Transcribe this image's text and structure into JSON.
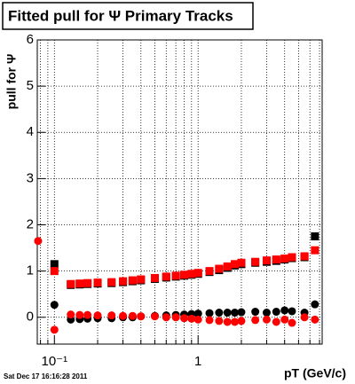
{
  "chart_data": {
    "type": "scatter",
    "title": "Fitted pull for  Ψ   Primary Tracks",
    "y_label": "pull for Ψ",
    "x_label": "pT (GeV/c)",
    "timestamp": "Sat Dec 17 16:16:28 2011",
    "log_x": true,
    "grid": true,
    "xlim": [
      0.076,
      7.3
    ],
    "ylim": [
      -0.58,
      6
    ],
    "xticks": [
      {
        "value": 0.1,
        "label": "10⁻¹"
      },
      1
    ],
    "xminorticks": [
      0.08,
      0.09,
      0.2,
      0.3,
      0.4,
      0.5,
      0.6,
      0.7,
      0.8,
      0.9,
      2,
      3,
      4,
      5,
      6,
      7
    ],
    "yticks": [
      0,
      1,
      2,
      3,
      4,
      5,
      6
    ],
    "x": [
      0.077,
      0.1,
      0.13,
      0.15,
      0.17,
      0.2,
      0.25,
      0.3,
      0.35,
      0.4,
      0.5,
      0.6,
      0.7,
      0.8,
      0.9,
      1.0,
      1.2,
      1.4,
      1.6,
      1.8,
      2.0,
      2.5,
      3.0,
      3.5,
      4.0,
      4.5,
      5.5,
      6.5
    ],
    "series": [
      {
        "marker": "square",
        "color": "#000000",
        "values": [
          null,
          1.15,
          0.7,
          0.71,
          0.72,
          0.73,
          0.74,
          0.76,
          0.78,
          0.8,
          0.83,
          0.86,
          0.88,
          0.9,
          0.92,
          0.94,
          0.98,
          1.02,
          1.07,
          1.12,
          1.15,
          1.18,
          1.2,
          1.22,
          1.25,
          1.28,
          1.3,
          1.75
        ]
      },
      {
        "marker": "square",
        "color": "#ff0000",
        "values": [
          null,
          1.0,
          0.72,
          0.73,
          0.74,
          0.75,
          0.76,
          0.78,
          0.8,
          0.82,
          0.85,
          0.88,
          0.9,
          0.92,
          0.94,
          0.96,
          1.0,
          1.05,
          1.1,
          1.15,
          1.18,
          1.2,
          1.23,
          1.25,
          1.27,
          1.3,
          1.32,
          1.45
        ]
      },
      {
        "marker": "circle",
        "color": "#000000",
        "values": [
          null,
          0.27,
          -0.05,
          -0.04,
          -0.03,
          -0.02,
          -0.02,
          0.0,
          0.0,
          0.02,
          0.03,
          0.04,
          0.05,
          0.06,
          0.07,
          0.08,
          0.09,
          0.1,
          0.1,
          0.1,
          0.11,
          0.12,
          0.1,
          0.12,
          0.15,
          0.13,
          0.1,
          0.28
        ]
      },
      {
        "marker": "circle",
        "color": "#ff0000",
        "values": [
          1.65,
          -0.27,
          0.06,
          0.05,
          0.05,
          0.04,
          0.04,
          0.03,
          0.03,
          0.02,
          0.02,
          0.0,
          0.0,
          -0.02,
          -0.03,
          -0.05,
          -0.06,
          -0.08,
          -0.1,
          -0.1,
          -0.08,
          -0.06,
          -0.05,
          -0.1,
          -0.05,
          -0.12,
          0.0,
          -0.05
        ]
      }
    ]
  }
}
